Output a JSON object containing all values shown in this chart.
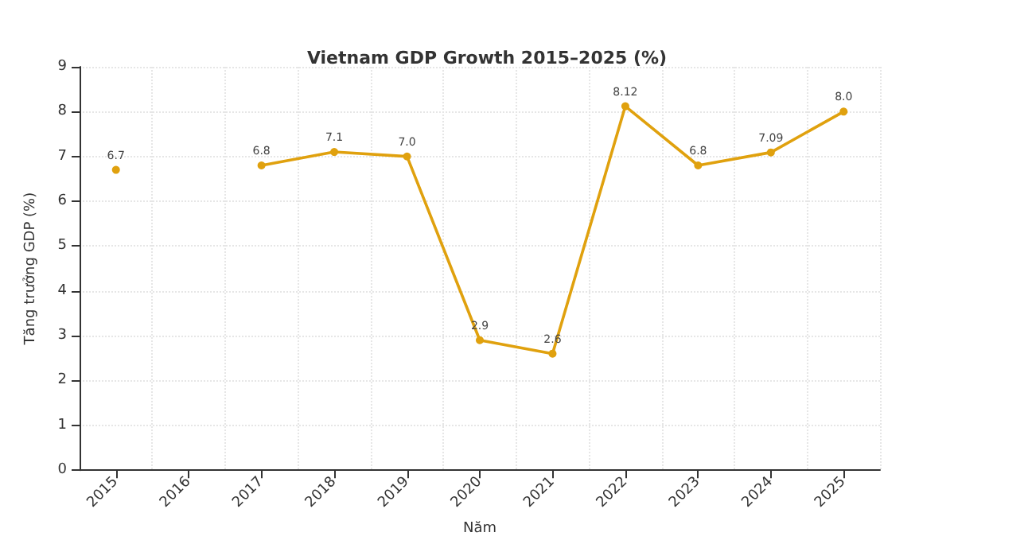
{
  "chart_data": {
    "type": "line",
    "title": "Vietnam GDP Growth 2015–2025 (%)",
    "xlabel": "Năm",
    "ylabel": "Tăng trưởng GDP (%)",
    "categories": [
      "2015",
      "2016",
      "2017",
      "2018",
      "2019",
      "2020",
      "2021",
      "2022",
      "2023",
      "2024",
      "2025"
    ],
    "series": [
      {
        "color": "#e0a10e",
        "values": [
          6.7,
          null,
          6.8,
          7.1,
          7.0,
          2.9,
          2.6,
          8.12,
          6.8,
          7.09,
          8.0
        ],
        "value_labels": [
          "6.7",
          null,
          "6.8",
          "7.1",
          "7.0",
          "2.9",
          "2.6",
          "8.12",
          "6.8",
          "7.09",
          "8.0"
        ]
      }
    ],
    "ylim": [
      0,
      9
    ],
    "yticks": [
      0,
      1,
      2,
      3,
      4,
      5,
      6,
      7,
      8,
      9
    ],
    "grid": true,
    "marker": "circle",
    "line_style": "solid"
  }
}
